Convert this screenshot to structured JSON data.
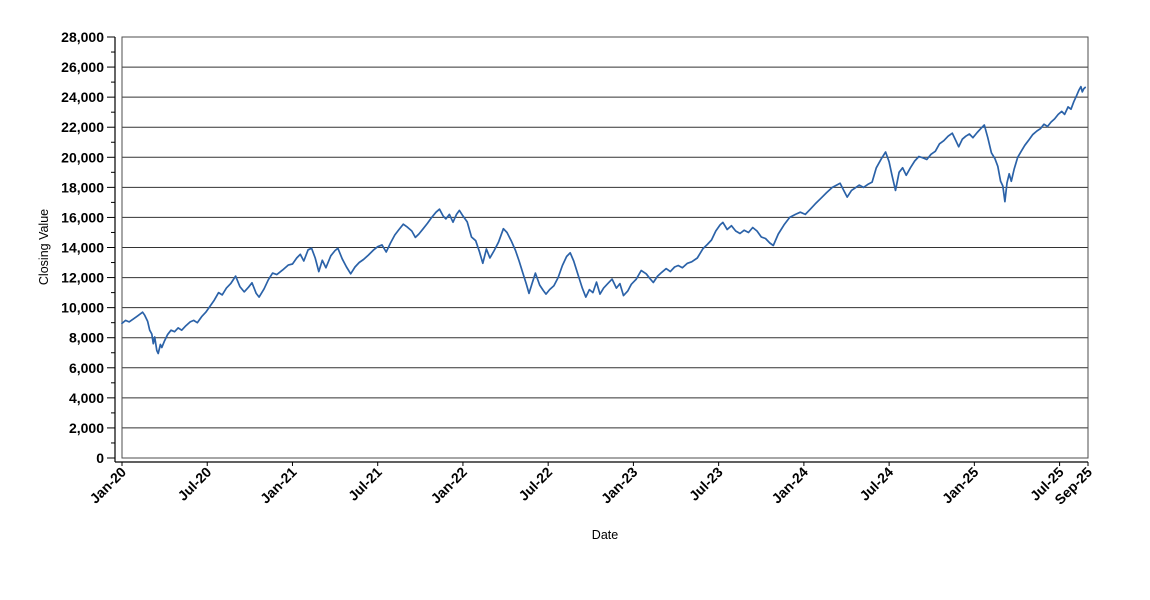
{
  "chart_data": {
    "type": "line",
    "title": "",
    "xlabel": "Date",
    "ylabel": "Closing Value",
    "x_unit": "months since Jan-2020",
    "xlim": [
      0,
      68
    ],
    "ylim": [
      0,
      28000
    ],
    "y_major_step": 2000,
    "y_minor_step": 1000,
    "grid": "horizontal-major-only",
    "legend": "none",
    "x_ticks": [
      {
        "m": 0,
        "label": "Jan-20"
      },
      {
        "m": 6,
        "label": "Jul-20"
      },
      {
        "m": 12,
        "label": "Jan-21"
      },
      {
        "m": 18,
        "label": "Jul-21"
      },
      {
        "m": 24,
        "label": "Jan-22"
      },
      {
        "m": 30,
        "label": "Jul-22"
      },
      {
        "m": 36,
        "label": "Jan-23"
      },
      {
        "m": 42,
        "label": "Jul-23"
      },
      {
        "m": 48,
        "label": "Jan-24"
      },
      {
        "m": 54,
        "label": "Jul-24"
      },
      {
        "m": 60,
        "label": "Jan-25"
      },
      {
        "m": 66,
        "label": "Jul-25"
      },
      {
        "m": 68,
        "label": "Sep-25"
      }
    ],
    "y_ticks": [
      {
        "v": 0,
        "label": "0"
      },
      {
        "v": 2000,
        "label": "2,000"
      },
      {
        "v": 4000,
        "label": "4,000"
      },
      {
        "v": 6000,
        "label": "6,000"
      },
      {
        "v": 8000,
        "label": "8,000"
      },
      {
        "v": 10000,
        "label": "10,000"
      },
      {
        "v": 12000,
        "label": "12,000"
      },
      {
        "v": 14000,
        "label": "14,000"
      },
      {
        "v": 16000,
        "label": "16,000"
      },
      {
        "v": 18000,
        "label": "18,000"
      },
      {
        "v": 20000,
        "label": "20,000"
      },
      {
        "v": 22000,
        "label": "22,000"
      },
      {
        "v": 24000,
        "label": "24,000"
      },
      {
        "v": 26000,
        "label": "26,000"
      },
      {
        "v": 28000,
        "label": "28,000"
      }
    ],
    "series": [
      {
        "name": "Closing Value",
        "color": "#2b62a8",
        "points": [
          [
            0,
            8950
          ],
          [
            0.25,
            9150
          ],
          [
            0.5,
            9050
          ],
          [
            0.8,
            9250
          ],
          [
            1.1,
            9450
          ],
          [
            1.45,
            9700
          ],
          [
            1.6,
            9500
          ],
          [
            1.8,
            9100
          ],
          [
            1.95,
            8500
          ],
          [
            2.1,
            8250
          ],
          [
            2.2,
            7600
          ],
          [
            2.3,
            8050
          ],
          [
            2.45,
            7150
          ],
          [
            2.55,
            6950
          ],
          [
            2.7,
            7550
          ],
          [
            2.8,
            7350
          ],
          [
            3.0,
            7800
          ],
          [
            3.2,
            8200
          ],
          [
            3.45,
            8500
          ],
          [
            3.7,
            8400
          ],
          [
            3.95,
            8650
          ],
          [
            4.2,
            8500
          ],
          [
            4.5,
            8800
          ],
          [
            4.8,
            9050
          ],
          [
            5.05,
            9150
          ],
          [
            5.3,
            9000
          ],
          [
            5.6,
            9400
          ],
          [
            5.9,
            9700
          ],
          [
            6.2,
            10100
          ],
          [
            6.5,
            10500
          ],
          [
            6.8,
            11000
          ],
          [
            7.05,
            10850
          ],
          [
            7.35,
            11300
          ],
          [
            7.65,
            11600
          ],
          [
            8.0,
            12100
          ],
          [
            8.3,
            11400
          ],
          [
            8.6,
            11050
          ],
          [
            8.9,
            11350
          ],
          [
            9.15,
            11650
          ],
          [
            9.45,
            10950
          ],
          [
            9.65,
            10700
          ],
          [
            10.0,
            11250
          ],
          [
            10.3,
            11850
          ],
          [
            10.6,
            12300
          ],
          [
            10.9,
            12200
          ],
          [
            11.3,
            12500
          ],
          [
            11.7,
            12830
          ],
          [
            12.0,
            12900
          ],
          [
            12.3,
            13300
          ],
          [
            12.55,
            13550
          ],
          [
            12.8,
            13100
          ],
          [
            13.1,
            13850
          ],
          [
            13.35,
            13950
          ],
          [
            13.6,
            13300
          ],
          [
            13.85,
            12400
          ],
          [
            14.1,
            13150
          ],
          [
            14.35,
            12650
          ],
          [
            14.7,
            13450
          ],
          [
            15.0,
            13800
          ],
          [
            15.2,
            13950
          ],
          [
            15.5,
            13250
          ],
          [
            15.8,
            12700
          ],
          [
            16.1,
            12250
          ],
          [
            16.4,
            12700
          ],
          [
            16.7,
            13000
          ],
          [
            17.0,
            13200
          ],
          [
            17.35,
            13500
          ],
          [
            17.7,
            13830
          ],
          [
            18.0,
            14050
          ],
          [
            18.3,
            14170
          ],
          [
            18.6,
            13700
          ],
          [
            18.9,
            14300
          ],
          [
            19.2,
            14830
          ],
          [
            19.5,
            15200
          ],
          [
            19.8,
            15550
          ],
          [
            20.1,
            15350
          ],
          [
            20.4,
            15100
          ],
          [
            20.65,
            14670
          ],
          [
            20.9,
            14900
          ],
          [
            21.2,
            15250
          ],
          [
            21.5,
            15600
          ],
          [
            21.8,
            16000
          ],
          [
            22.1,
            16350
          ],
          [
            22.35,
            16550
          ],
          [
            22.6,
            16100
          ],
          [
            22.8,
            15900
          ],
          [
            23.05,
            16200
          ],
          [
            23.3,
            15680
          ],
          [
            23.55,
            16200
          ],
          [
            23.75,
            16470
          ],
          [
            24.0,
            16100
          ],
          [
            24.3,
            15700
          ],
          [
            24.6,
            14700
          ],
          [
            24.9,
            14450
          ],
          [
            25.15,
            13750
          ],
          [
            25.4,
            12950
          ],
          [
            25.65,
            13900
          ],
          [
            25.9,
            13300
          ],
          [
            26.2,
            13800
          ],
          [
            26.5,
            14350
          ],
          [
            26.85,
            15250
          ],
          [
            27.1,
            15000
          ],
          [
            27.4,
            14450
          ],
          [
            27.7,
            13800
          ],
          [
            27.95,
            13100
          ],
          [
            28.2,
            12350
          ],
          [
            28.45,
            11600
          ],
          [
            28.65,
            10950
          ],
          [
            28.9,
            11700
          ],
          [
            29.1,
            12300
          ],
          [
            29.4,
            11500
          ],
          [
            29.65,
            11150
          ],
          [
            29.85,
            10900
          ],
          [
            30.1,
            11200
          ],
          [
            30.4,
            11450
          ],
          [
            30.7,
            12000
          ],
          [
            31.0,
            12800
          ],
          [
            31.3,
            13400
          ],
          [
            31.55,
            13650
          ],
          [
            31.8,
            13100
          ],
          [
            32.1,
            12200
          ],
          [
            32.4,
            11300
          ],
          [
            32.65,
            10700
          ],
          [
            32.9,
            11200
          ],
          [
            33.15,
            11000
          ],
          [
            33.4,
            11700
          ],
          [
            33.65,
            10900
          ],
          [
            33.9,
            11300
          ],
          [
            34.2,
            11600
          ],
          [
            34.5,
            11900
          ],
          [
            34.8,
            11300
          ],
          [
            35.05,
            11600
          ],
          [
            35.3,
            10800
          ],
          [
            35.6,
            11100
          ],
          [
            35.85,
            11550
          ],
          [
            36.2,
            11900
          ],
          [
            36.55,
            12470
          ],
          [
            36.9,
            12250
          ],
          [
            37.15,
            11950
          ],
          [
            37.4,
            11670
          ],
          [
            37.7,
            12100
          ],
          [
            38.0,
            12350
          ],
          [
            38.3,
            12600
          ],
          [
            38.6,
            12400
          ],
          [
            38.9,
            12700
          ],
          [
            39.15,
            12800
          ],
          [
            39.45,
            12650
          ],
          [
            39.8,
            12950
          ],
          [
            40.1,
            13050
          ],
          [
            40.5,
            13300
          ],
          [
            40.9,
            13930
          ],
          [
            41.2,
            14200
          ],
          [
            41.5,
            14500
          ],
          [
            41.8,
            15100
          ],
          [
            42.1,
            15500
          ],
          [
            42.3,
            15670
          ],
          [
            42.6,
            15200
          ],
          [
            42.9,
            15450
          ],
          [
            43.2,
            15100
          ],
          [
            43.5,
            14930
          ],
          [
            43.8,
            15150
          ],
          [
            44.1,
            15000
          ],
          [
            44.4,
            15330
          ],
          [
            44.7,
            15100
          ],
          [
            45.0,
            14700
          ],
          [
            45.3,
            14600
          ],
          [
            45.6,
            14300
          ],
          [
            45.85,
            14130
          ],
          [
            46.2,
            14900
          ],
          [
            46.6,
            15500
          ],
          [
            47.0,
            16000
          ],
          [
            47.4,
            16200
          ],
          [
            47.75,
            16350
          ],
          [
            48.1,
            16200
          ],
          [
            48.45,
            16550
          ],
          [
            48.8,
            16900
          ],
          [
            49.2,
            17270
          ],
          [
            49.6,
            17650
          ],
          [
            50.0,
            18000
          ],
          [
            50.3,
            18150
          ],
          [
            50.55,
            18270
          ],
          [
            50.8,
            17800
          ],
          [
            51.05,
            17350
          ],
          [
            51.35,
            17800
          ],
          [
            51.6,
            17950
          ],
          [
            51.9,
            18150
          ],
          [
            52.2,
            18000
          ],
          [
            52.5,
            18200
          ],
          [
            52.8,
            18350
          ],
          [
            53.1,
            19300
          ],
          [
            53.45,
            19900
          ],
          [
            53.75,
            20350
          ],
          [
            54.0,
            19700
          ],
          [
            54.2,
            18800
          ],
          [
            54.45,
            17800
          ],
          [
            54.7,
            19000
          ],
          [
            54.95,
            19300
          ],
          [
            55.2,
            18800
          ],
          [
            55.5,
            19300
          ],
          [
            55.8,
            19750
          ],
          [
            56.1,
            20050
          ],
          [
            56.4,
            19950
          ],
          [
            56.65,
            19850
          ],
          [
            56.95,
            20200
          ],
          [
            57.25,
            20400
          ],
          [
            57.55,
            20900
          ],
          [
            57.85,
            21100
          ],
          [
            58.15,
            21400
          ],
          [
            58.45,
            21600
          ],
          [
            58.7,
            21100
          ],
          [
            58.9,
            20700
          ],
          [
            59.15,
            21200
          ],
          [
            59.4,
            21400
          ],
          [
            59.65,
            21550
          ],
          [
            59.9,
            21300
          ],
          [
            60.2,
            21650
          ],
          [
            60.45,
            21900
          ],
          [
            60.7,
            22150
          ],
          [
            60.95,
            21300
          ],
          [
            61.2,
            20300
          ],
          [
            61.45,
            19900
          ],
          [
            61.65,
            19400
          ],
          [
            61.85,
            18400
          ],
          [
            62.0,
            18100
          ],
          [
            62.15,
            17050
          ],
          [
            62.3,
            18300
          ],
          [
            62.45,
            18900
          ],
          [
            62.6,
            18400
          ],
          [
            62.8,
            19200
          ],
          [
            63.05,
            20000
          ],
          [
            63.3,
            20400
          ],
          [
            63.55,
            20800
          ],
          [
            63.8,
            21100
          ],
          [
            64.1,
            21500
          ],
          [
            64.4,
            21750
          ],
          [
            64.65,
            21900
          ],
          [
            64.9,
            22200
          ],
          [
            65.15,
            22050
          ],
          [
            65.4,
            22350
          ],
          [
            65.65,
            22550
          ],
          [
            65.9,
            22850
          ],
          [
            66.15,
            23050
          ],
          [
            66.35,
            22850
          ],
          [
            66.6,
            23350
          ],
          [
            66.8,
            23200
          ],
          [
            67.0,
            23700
          ],
          [
            67.2,
            24100
          ],
          [
            67.35,
            24450
          ],
          [
            67.5,
            24700
          ],
          [
            67.6,
            24350
          ],
          [
            67.7,
            24550
          ],
          [
            67.8,
            24650
          ]
        ]
      }
    ]
  },
  "colors": {
    "background": "#ffffff",
    "line": "#2b62a8",
    "grid": "#333333",
    "frame": "#4d4d4d",
    "axis": "#000000",
    "text": "#000000"
  }
}
